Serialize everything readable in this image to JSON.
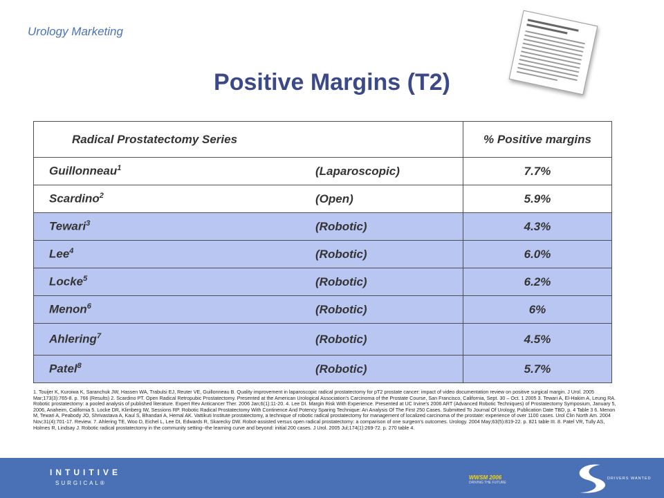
{
  "header": {
    "label": "Urology Marketing",
    "title": "Positive Margins (T2)"
  },
  "table": {
    "headers": [
      "Radical Prostatectomy Series",
      "% Positive margins"
    ],
    "rows": [
      {
        "name": "Guillonneau",
        "ref": "1",
        "type": "(Laparoscopic)",
        "value": "7.7%",
        "highlight": false
      },
      {
        "name": "Scardino",
        "ref": "2",
        "type": "(Open)",
        "value": "5.9%",
        "highlight": false
      },
      {
        "name": "Tewari",
        "ref": "3",
        "type": "(Robotic)",
        "value": "4.3%",
        "highlight": true
      },
      {
        "name": "Lee",
        "ref": "4",
        "type": "(Robotic)",
        "value": "6.0%",
        "highlight": true
      },
      {
        "name": "Locke",
        "ref": "5",
        "type": "(Robotic)",
        "value": "6.2%",
        "highlight": true
      },
      {
        "name": "Menon",
        "ref": "6",
        "type": "(Robotic)",
        "value": "6%",
        "highlight": true
      },
      {
        "name": "Ahlering",
        "ref": "7",
        "type": "(Robotic)",
        "value": "4.5%",
        "highlight": true
      },
      {
        "name": "Patel",
        "ref": "8",
        "type": "(Robotic)",
        "value": "5.7%",
        "highlight": true
      }
    ]
  },
  "references": "1. Touijer K, Kuroiwa K, Saranchuk JW, Hassen WA, Trabulsi EJ, Reuter VE, Guillonneau B. Quality improvement in laparoscopic radical prostatectomy for pT2 prostate cancer: impact of video documentation review on positive surgical margin. J Urol. 2005 Mar;173(3):765-8. p. 766 (Results) 2. Scardino PT. Open Radical Retropubic Prostatectomy. Presented at the American Urological Association's Carcinoma of the Prostate Course, San Francisco, California, Sept. 30 – Oct. 1 2005 3. Tewari A, El-Hakim A, Leung RA. Robotic prostatectomy: a pooled analysis of published literature. Expert Rev Anticancer Ther. 2006 Jan;6(1):11-20. 4. Lee DI. Margin Risk With Experience. Presented at UC Irvine's 2006 ART (Advanced Robotic Techniques) of Prostatectomy Symposium, January 5, 2006, Anaheim, California 5. Locke DR, Klimberg IW, Sessions RP. Robotic Radical Prostatectomy With Continence And Potency Sparing Technique: An Analysis Of The First 250 Cases. Submitted To Journal Of Urology, Publication Date TBD, p. 4 Table 3 6. Menon M, Tewari A, Peabody JO, Shrivastava A, Kaul S, Bhandari A, Hemal AK. Vattikuti Institute prostatectomy, a technique of robotic radical prostatectomy for management of localized carcinoma of the prostate: experience of over 1100 cases. Urol Clin North Am. 2004 Nov;31(4):701-17. Review. 7. Ahlering TE, Woo D, Eichel L, Lee DI, Edwards R, Skarecky DW. Robot-assisted versus open radical prostatectomy: a comparison of one surgeon's outcomes. Urology. 2004 May;63(5):819-22. p. 821 table III. 8. Patel VR, Tully AS, Holmes R, Lindsay J. Robotic radical prostatectomy in the community setting--the learning curve and beyond: initial 200 cases. J Urol. 2005 Jul;174(1):269-72. p. 270 table 4.",
  "footer": {
    "brand": "INTUITIVE",
    "brand_sub": "SURGICAL®",
    "event": "WWSM 2006",
    "event_sub": "DRIVING THE FUTURE",
    "tagline": "DRIVERS WANTED"
  },
  "colors": {
    "title": "#3b4a86",
    "label": "#4a72b8",
    "robotic_row": "#b9c6f2",
    "footer": "#4a70b5",
    "event": "#ffd400"
  }
}
